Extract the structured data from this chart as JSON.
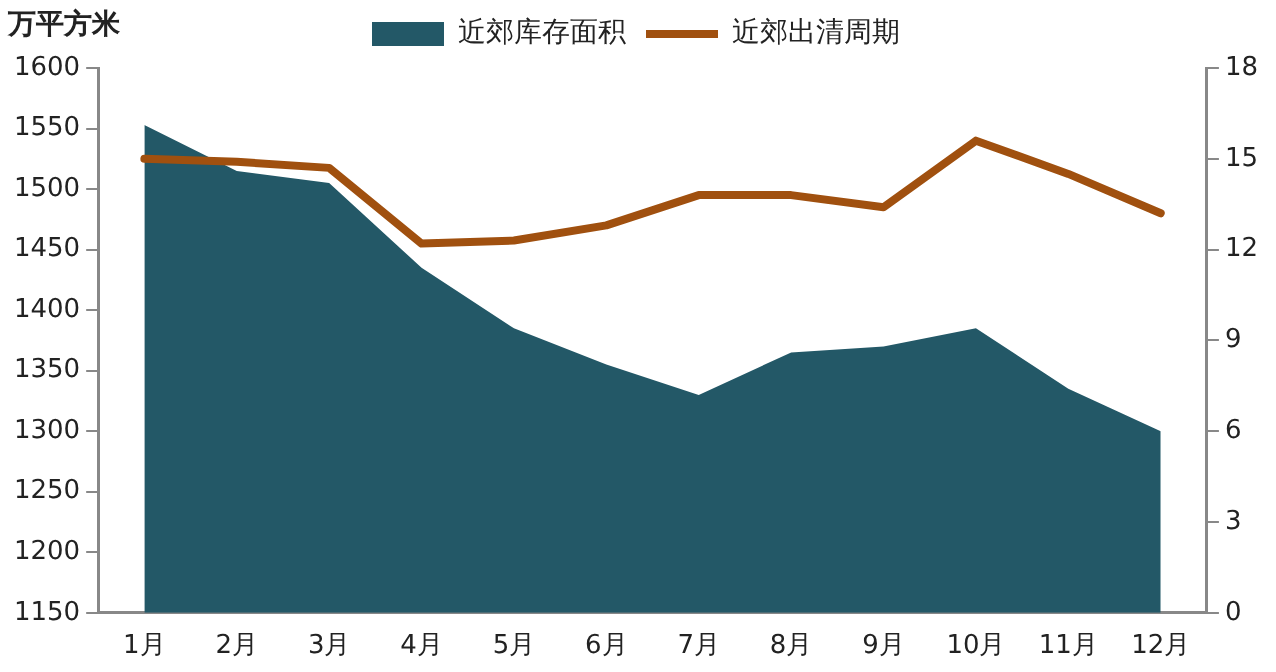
{
  "chart_data": {
    "type": "area",
    "ylabel": "万平方米",
    "categories": [
      "1月",
      "2月",
      "3月",
      "4月",
      "5月",
      "6月",
      "7月",
      "8月",
      "9月",
      "10月",
      "11月",
      "12月"
    ],
    "series": [
      {
        "name": "近郊库存面积",
        "type": "area",
        "color": "#235867",
        "values": [
          1553,
          1515,
          1505,
          1435,
          1385,
          1355,
          1330,
          1365,
          1370,
          1385,
          1335,
          1300
        ]
      },
      {
        "name": "近郊出清周期",
        "type": "line",
        "axis": "y2",
        "color": "#a0500f",
        "values": [
          15.0,
          14.9,
          14.7,
          12.2,
          12.3,
          12.8,
          13.8,
          13.8,
          13.4,
          15.6,
          14.5,
          13.2
        ]
      }
    ],
    "ylim": [
      1150,
      1600
    ],
    "yticks": [
      1150,
      1200,
      1250,
      1300,
      1350,
      1400,
      1450,
      1500,
      1550,
      1600
    ],
    "y2lim": [
      0,
      18
    ],
    "y2ticks": [
      0,
      3,
      6,
      9,
      12,
      15,
      18
    ],
    "grid": false,
    "legend": "top",
    "line_style": "solid",
    "marker": "none"
  }
}
